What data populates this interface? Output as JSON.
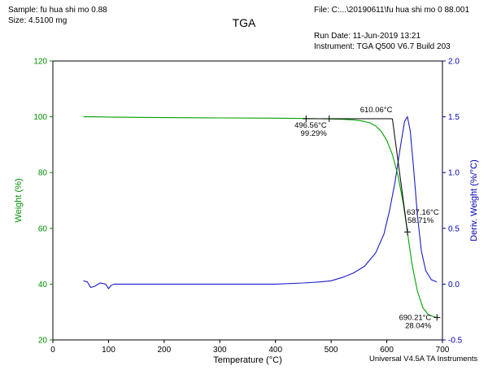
{
  "header": {
    "sample": "Sample: fu hua shi mo 0.88",
    "size": "Size:  4.5100 mg",
    "title": "TGA",
    "file": "File: C:...\\20190611\\fu hua shi mo 0 88.001",
    "run_date": "Run Date: 11-Jun-2019 13:21",
    "instrument": "Instrument: TGA Q500 V6.7 Build 203"
  },
  "footer": {
    "software": "Universal V4.5A TA Instruments"
  },
  "chart_data": {
    "type": "line",
    "title": "TGA",
    "xlabel": "Temperature (°C)",
    "ylabel": "Weight (%)",
    "y2label": "Deriv. Weight (%/°C)",
    "xlim": [
      0,
      700
    ],
    "ylim": [
      20,
      120
    ],
    "y2lim": [
      -0.5,
      2.0
    ],
    "xticks": [
      "0",
      "100",
      "200",
      "300",
      "400",
      "500",
      "600",
      "700"
    ],
    "yticks": [
      "20",
      "40",
      "60",
      "80",
      "100",
      "120"
    ],
    "y2ticks": [
      "-0.5",
      "0.0",
      "0.5",
      "1.0",
      "1.5",
      "2.0"
    ],
    "colors": {
      "weight": "#00a000",
      "deriv": "#1c1cc8",
      "axis_left": "#009000",
      "axis_right": "#0000b0"
    },
    "series": [
      {
        "name": "Weight",
        "axis": "left",
        "x": [
          55,
          70,
          100,
          150,
          200,
          300,
          400,
          450,
          480,
          500,
          520,
          540,
          555,
          570,
          580,
          590,
          600,
          610,
          620,
          630,
          637,
          645,
          655,
          665,
          675,
          690
        ],
        "y": [
          100.0,
          100.0,
          99.9,
          99.8,
          99.7,
          99.6,
          99.5,
          99.4,
          99.3,
          99.2,
          99.1,
          98.9,
          98.5,
          97.8,
          96.7,
          94.8,
          91.5,
          86.5,
          79.0,
          68.5,
          58.7,
          47.5,
          37.5,
          31.5,
          29.0,
          28.0
        ]
      },
      {
        "name": "Deriv. Weight",
        "axis": "right",
        "x": [
          55,
          62,
          68,
          75,
          85,
          95,
          100,
          105,
          110,
          150,
          200,
          300,
          400,
          450,
          480,
          500,
          520,
          540,
          560,
          580,
          595,
          605,
          615,
          625,
          632,
          637,
          642,
          648,
          655,
          662,
          670,
          680,
          690
        ],
        "y": [
          0.03,
          0.02,
          -0.03,
          -0.02,
          0.01,
          0.0,
          -0.04,
          -0.01,
          0.0,
          0.0,
          0.0,
          0.0,
          0.0,
          0.01,
          0.02,
          0.03,
          0.06,
          0.1,
          0.16,
          0.28,
          0.45,
          0.66,
          0.92,
          1.25,
          1.46,
          1.5,
          1.38,
          1.05,
          0.62,
          0.3,
          0.12,
          0.04,
          0.02
        ]
      }
    ],
    "annotations": {
      "onset": {
        "temp_label": "610.06°C",
        "x": 610.06,
        "y": 99.29
      },
      "point1": {
        "temp_label": "496.56°C",
        "weight_label": "99.29%",
        "x": 496.56,
        "y": 99.29
      },
      "point2": {
        "temp_label": "637.16°C",
        "weight_label": "58.71%",
        "x": 637.16,
        "y": 58.71
      },
      "point3": {
        "temp_label": "690.21°C",
        "weight_label": "28.04%",
        "x": 690.21,
        "y": 28.04
      },
      "baseline_from_x": 455
    }
  }
}
